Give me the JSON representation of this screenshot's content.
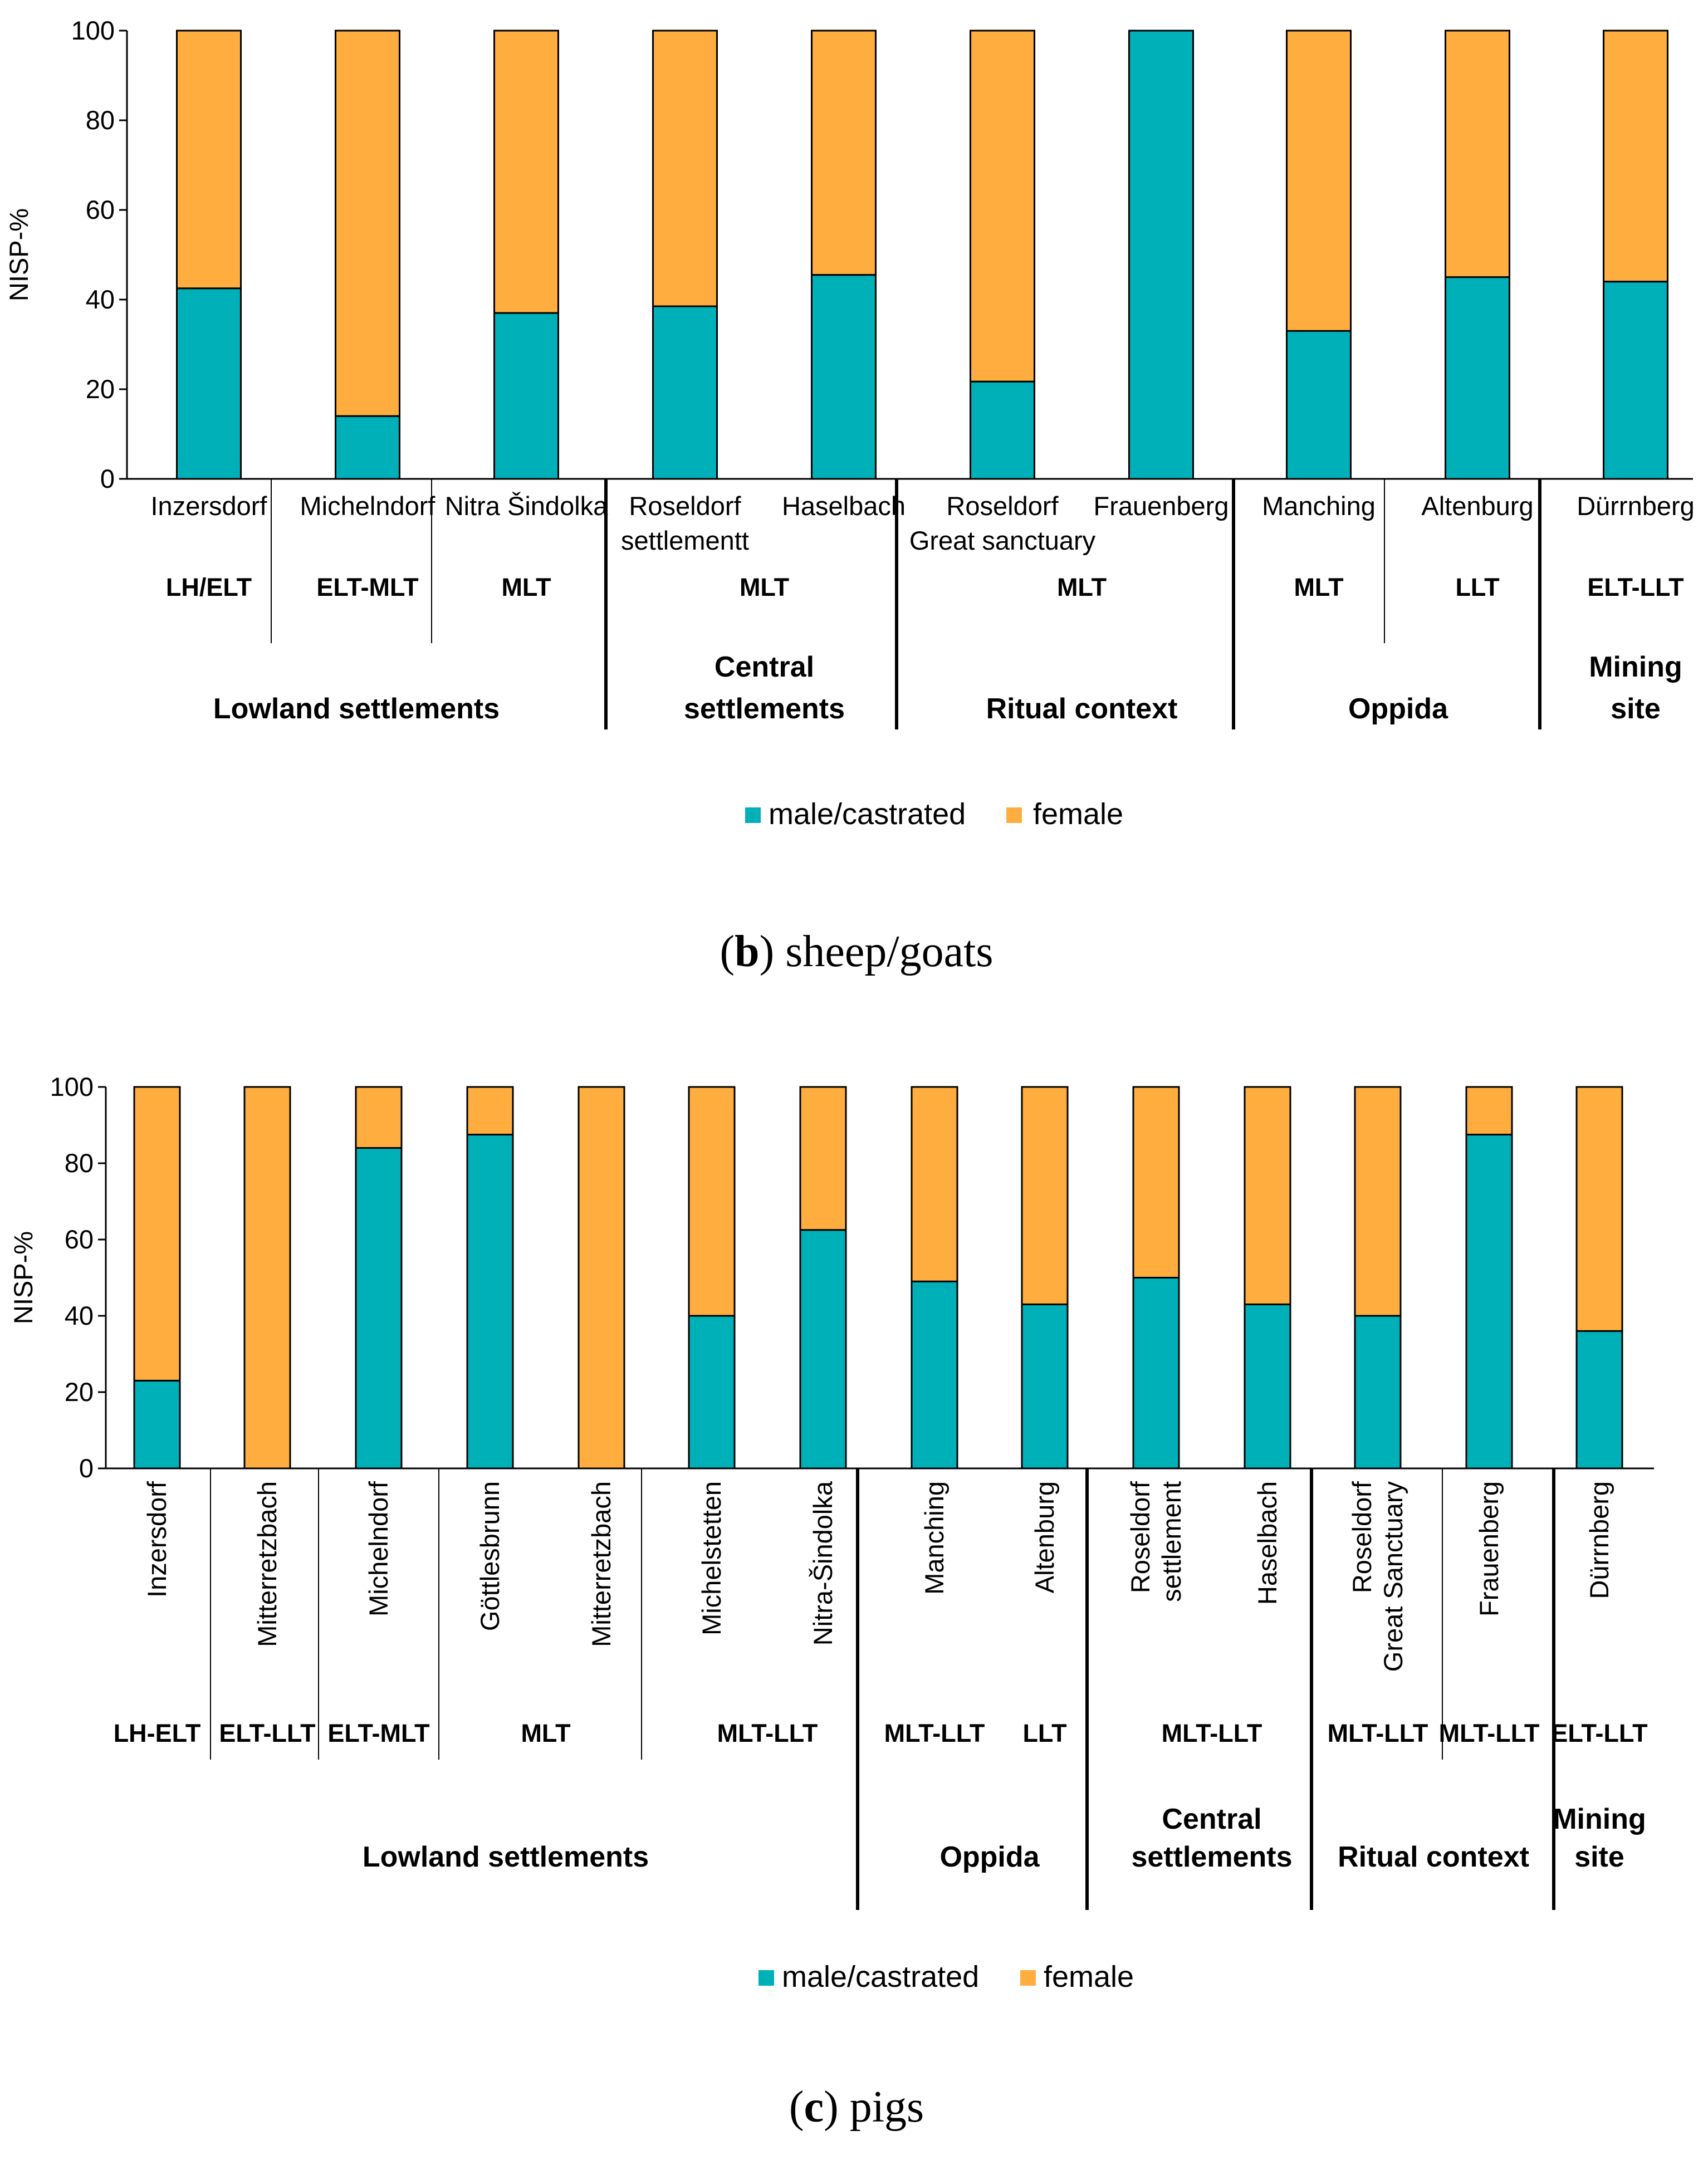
{
  "colors": {
    "male": "#00b0b9",
    "female": "#ffad3f",
    "axis": "#000000",
    "bar_stroke": "#000000"
  },
  "chart_data": [
    {
      "type": "bar",
      "stacked": true,
      "caption_letter": "b",
      "caption_text": " sheep/goats",
      "ylabel": "NISP-%",
      "ylim": [
        0,
        100
      ],
      "yticks": [
        "0",
        "20",
        "40",
        "60",
        "80",
        "100"
      ],
      "categories": [
        [
          "Inzersdorf"
        ],
        [
          "Michelndorf"
        ],
        [
          "Nitra Šindolka"
        ],
        [
          "Roseldorf",
          "settlementt"
        ],
        [
          "Haselbach"
        ],
        [
          "Roseldorf",
          "Great sanctuary"
        ],
        [
          "Frauenberg"
        ],
        [
          "Manching"
        ],
        [
          "Altenburg"
        ],
        [
          "Dürrnberg"
        ]
      ],
      "series": [
        {
          "name": "male/castrated",
          "values": [
            42.5,
            14,
            37,
            38.5,
            45.5,
            21.7,
            100,
            33,
            45,
            44
          ]
        },
        {
          "name": "female",
          "values": [
            57.5,
            86,
            63,
            61.5,
            54.5,
            78.3,
            0,
            67,
            55,
            56
          ]
        }
      ],
      "periods": [
        {
          "label": "LH/ELT",
          "from": 0,
          "to": 0
        },
        {
          "label": "ELT-MLT",
          "from": 1,
          "to": 1
        },
        {
          "label": "MLT",
          "from": 2,
          "to": 2
        },
        {
          "label": "MLT",
          "from": 3,
          "to": 4
        },
        {
          "label": "MLT",
          "from": 5,
          "to": 6
        },
        {
          "label": "MLT",
          "from": 7,
          "to": 7
        },
        {
          "label": "LLT",
          "from": 8,
          "to": 8
        },
        {
          "label": "ELT-LLT",
          "from": 9,
          "to": 9
        }
      ],
      "groups": [
        {
          "label": [
            "Lowland settlements"
          ],
          "from": 0,
          "to": 2
        },
        {
          "label": [
            "Central",
            "settlements"
          ],
          "from": 3,
          "to": 4
        },
        {
          "label": [
            "Ritual context"
          ],
          "from": 5,
          "to": 6
        },
        {
          "label": [
            "Oppida"
          ],
          "from": 7,
          "to": 8
        },
        {
          "label": [
            "Mining",
            "site"
          ],
          "from": 9,
          "to": 9
        }
      ],
      "legend": [
        {
          "label": "male/castrated",
          "key": "male"
        },
        {
          "label": "female",
          "key": "female"
        }
      ]
    },
    {
      "type": "bar",
      "stacked": true,
      "caption_letter": "c",
      "caption_text": " pigs",
      "ylabel": "NISP-%",
      "ylim": [
        0,
        100
      ],
      "yticks": [
        "0",
        "20",
        "40",
        "60",
        "80",
        "100"
      ],
      "categories": [
        [
          "Inzersdorf"
        ],
        [
          "Mitterretzbach"
        ],
        [
          "Michelndorf"
        ],
        [
          "Göttlesbrunn"
        ],
        [
          "Mitterretzbach"
        ],
        [
          "Michelstetten"
        ],
        [
          "Nitra-Šindolka"
        ],
        [
          "Manching"
        ],
        [
          "Altenburg"
        ],
        [
          "Roseldorf",
          "settlement"
        ],
        [
          "Haselbach"
        ],
        [
          "Roseldorf",
          "Great Sanctuary"
        ],
        [
          "Frauenberg"
        ],
        [
          "Dürrnberg"
        ]
      ],
      "series": [
        {
          "name": "male/castrated",
          "values": [
            23,
            0,
            84,
            87.5,
            0,
            40,
            62.5,
            49,
            43,
            50,
            43,
            40,
            87.5,
            36
          ]
        },
        {
          "name": "female",
          "values": [
            77,
            100,
            16,
            12.5,
            100,
            60,
            37.5,
            51,
            57,
            50,
            57,
            60,
            12.5,
            64
          ]
        }
      ],
      "periods": [
        {
          "label": "LH-ELT",
          "from": 0,
          "to": 0
        },
        {
          "label": "ELT-LLT",
          "from": 1,
          "to": 1
        },
        {
          "label": "ELT-MLT",
          "from": 2,
          "to": 2
        },
        {
          "label": "MLT",
          "from": 3,
          "to": 4
        },
        {
          "label": "MLT-LLT",
          "from": 5,
          "to": 6
        },
        {
          "label": "MLT-LLT",
          "from": 7,
          "to": 7
        },
        {
          "label": "LLT",
          "from": 8,
          "to": 8
        },
        {
          "label": "MLT-LLT",
          "from": 9,
          "to": 10
        },
        {
          "label": "MLT-LLT",
          "from": 11,
          "to": 11
        },
        {
          "label": "MLT-LLT",
          "from": 12,
          "to": 12
        },
        {
          "label": "ELT-LLT",
          "from": 13,
          "to": 13
        }
      ],
      "groups": [
        {
          "label": [
            "Lowland settlements"
          ],
          "from": 0,
          "to": 6
        },
        {
          "label": [
            "Oppida"
          ],
          "from": 7,
          "to": 8
        },
        {
          "label": [
            "Central",
            "settlements"
          ],
          "from": 9,
          "to": 10
        },
        {
          "label": [
            "Ritual context"
          ],
          "from": 11,
          "to": 12
        },
        {
          "label": [
            "Mining",
            "site"
          ],
          "from": 13,
          "to": 13
        }
      ],
      "legend": [
        {
          "label": "male/castrated",
          "key": "male"
        },
        {
          "label": "female",
          "key": "female"
        }
      ]
    }
  ]
}
